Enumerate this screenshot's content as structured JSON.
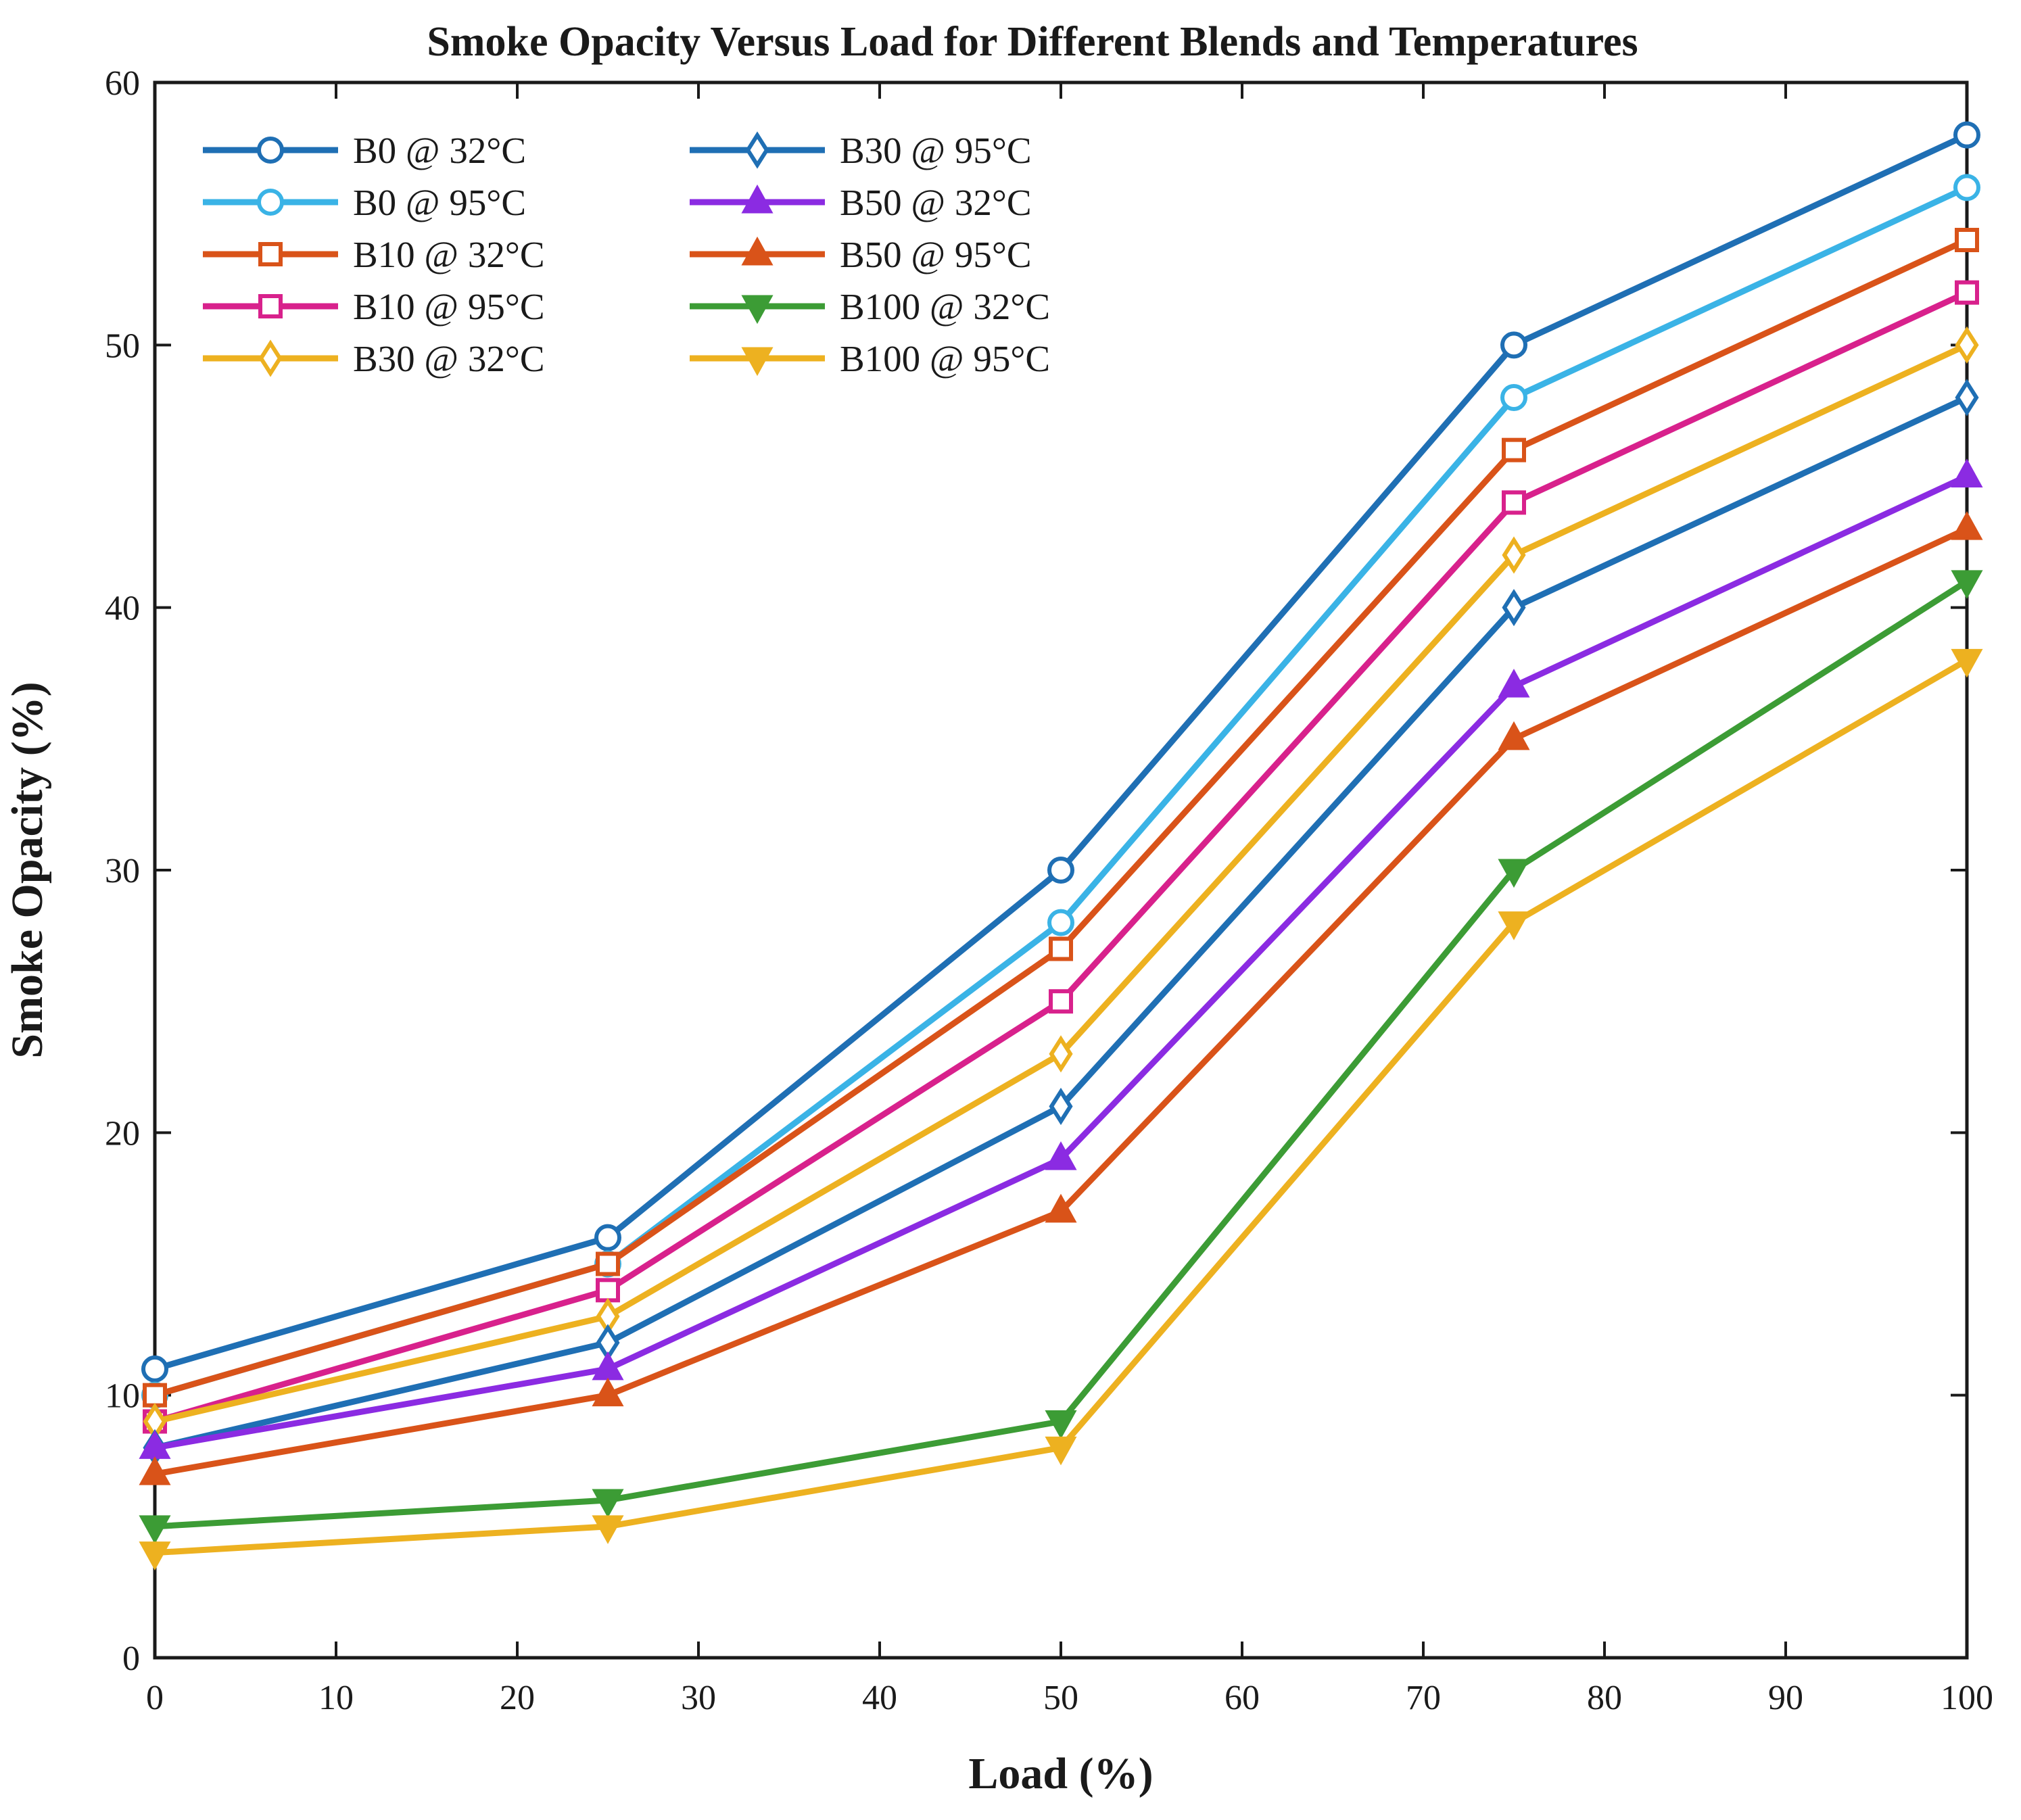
{
  "chart_data": {
    "type": "line",
    "title": "Smoke Opacity Versus Load for Different Blends and Temperatures",
    "xlabel": "Load (%)",
    "ylabel": "Smoke Opacity (%)",
    "xlim": [
      0,
      100
    ],
    "ylim": [
      0,
      60
    ],
    "xticks": [
      0,
      10,
      20,
      30,
      40,
      50,
      60,
      70,
      80,
      90,
      100
    ],
    "yticks": [
      0,
      10,
      20,
      30,
      40,
      50,
      60
    ],
    "grid": false,
    "legend_position": "top-left",
    "legend_columns": 2,
    "x": [
      0,
      25,
      50,
      75,
      100
    ],
    "series": [
      {
        "name": "B0 @ 32°C",
        "color": "#1f6fb4",
        "marker": "circle",
        "values": [
          11,
          16,
          30,
          50,
          58
        ]
      },
      {
        "name": "B0 @ 95°C",
        "color": "#3ab3e6",
        "marker": "circle",
        "values": [
          10,
          15,
          28,
          48,
          56
        ]
      },
      {
        "name": "B10 @ 32°C",
        "color": "#d95319",
        "marker": "square",
        "values": [
          10,
          15,
          27,
          46,
          54
        ]
      },
      {
        "name": "B10 @ 95°C",
        "color": "#d8218c",
        "marker": "square",
        "values": [
          9,
          14,
          25,
          44,
          52
        ]
      },
      {
        "name": "B30 @ 32°C",
        "color": "#edb120",
        "marker": "diamond",
        "values": [
          9,
          13,
          23,
          42,
          50
        ]
      },
      {
        "name": "B30 @ 95°C",
        "color": "#1f6fb4",
        "marker": "diamond",
        "values": [
          8,
          12,
          21,
          40,
          48
        ]
      },
      {
        "name": "B50 @ 32°C",
        "color": "#8b2be2",
        "marker": "triangle-up",
        "values": [
          8,
          11,
          19,
          37,
          45
        ]
      },
      {
        "name": "B50 @ 95°C",
        "color": "#d95319",
        "marker": "triangle-up",
        "values": [
          7,
          10,
          17,
          35,
          43
        ]
      },
      {
        "name": "B100 @ 32°C",
        "color": "#3c9c35",
        "marker": "triangle-down",
        "values": [
          5,
          6,
          9,
          30,
          41
        ]
      },
      {
        "name": "B100 @ 95°C",
        "color": "#edb120",
        "marker": "triangle-down",
        "values": [
          4,
          5,
          8,
          28,
          38
        ]
      }
    ]
  }
}
